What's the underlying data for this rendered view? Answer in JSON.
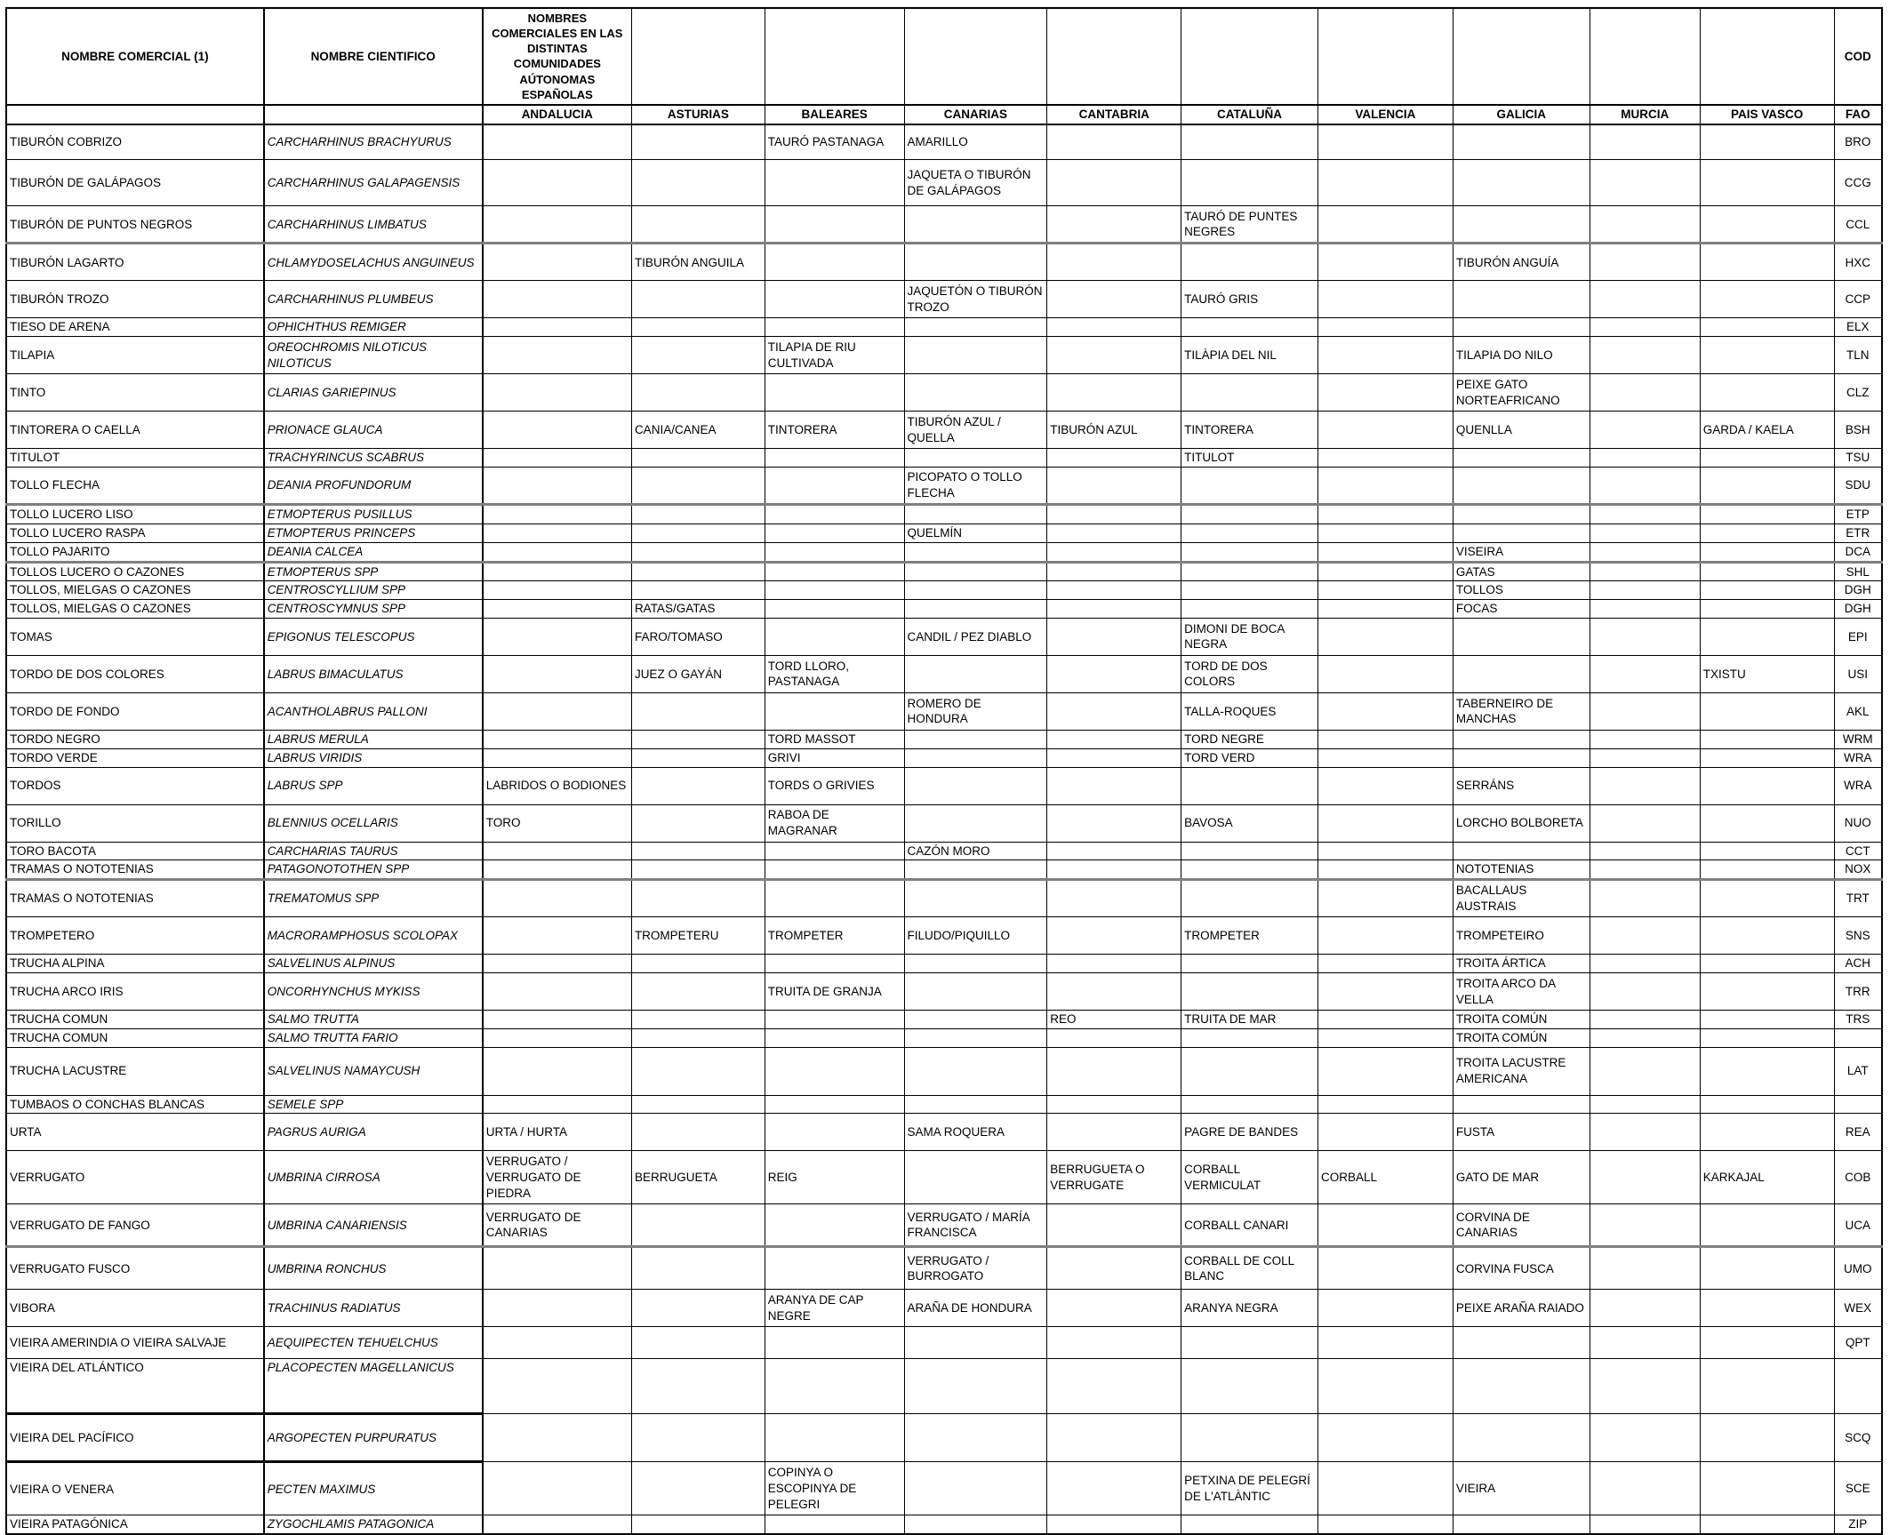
{
  "header": {
    "col_commercial": "NOMBRE COMERCIAL (1)",
    "col_scientific": "NOMBRE CIENTIFICO",
    "col_group": "NOMBRES COMERCIALES EN LAS DISTINTAS COMUNIDADES AÚTONOMAS ESPAÑOLAS",
    "col_cod": "COD",
    "regions": [
      "ANDALUCIA",
      "ASTURIAS",
      "BALEARES",
      "CANARIAS",
      "CANTABRIA",
      "CATALUÑA",
      "VALENCIA",
      "GALICIA",
      "MURCIA",
      "PAIS VASCO"
    ],
    "col_fao": "FAO"
  },
  "rows": [
    {
      "commercial": "TIBURÓN COBRIZO",
      "scientific": "CARCHARHINUS BRACHYURUS",
      "regions": [
        "",
        "",
        "TAURÓ PASTANAGA",
        "AMARILLO",
        "",
        "",
        "",
        "",
        "",
        ""
      ],
      "fao": "BRO"
    },
    {
      "commercial": "TIBURÓN DE GALÁPAGOS",
      "scientific": "CARCHARHINUS GALAPAGENSIS",
      "regions": [
        "",
        "",
        "",
        "JAQUETA O TIBURÓN DE GALÁPAGOS",
        "",
        "",
        "",
        "",
        "",
        ""
      ],
      "fao": "CCG"
    },
    {
      "commercial": "TIBURÓN DE PUNTOS NEGROS",
      "scientific": "CARCHARHINUS LIMBATUS",
      "regions": [
        "",
        "",
        "",
        "",
        "",
        "TAURÓ DE PUNTES NEGRES",
        "",
        "",
        "",
        ""
      ],
      "fao": "CCL"
    },
    {
      "commercial": "TIBURÓN LAGARTO",
      "scientific": "CHLAMYDOSELACHUS ANGUINEUS",
      "regions": [
        "",
        "TIBURÓN ANGUILA",
        "",
        "",
        "",
        "",
        "",
        "TIBURÓN ANGUÍA",
        "",
        ""
      ],
      "fao": "HXC"
    },
    {
      "commercial": "TIBURÓN TROZO",
      "scientific": "CARCHARHINUS PLUMBEUS",
      "regions": [
        "",
        "",
        "",
        "JAQUETÓN O TIBURÓN TROZO",
        "",
        "TAURÓ GRIS",
        "",
        "",
        "",
        ""
      ],
      "fao": "CCP"
    },
    {
      "commercial": "TIESO DE ARENA",
      "scientific": "OPHICHTHUS REMIGER",
      "regions": [
        "",
        "",
        "",
        "",
        "",
        "",
        "",
        "",
        "",
        ""
      ],
      "fao": "ELX"
    },
    {
      "commercial": "TILAPIA",
      "scientific": "OREOCHROMIS NILOTICUS NILOTICUS",
      "regions": [
        "",
        "",
        "TILAPIA DE RIU CULTIVADA",
        "",
        "",
        "TILÀPIA DEL NIL",
        "",
        "TILAPIA DO NILO",
        "",
        ""
      ],
      "fao": "TLN"
    },
    {
      "commercial": "TINTO",
      "scientific": "CLARIAS GARIEPINUS",
      "regions": [
        "",
        "",
        "",
        "",
        "",
        "",
        "",
        "PEIXE GATO NORTEAFRICANO",
        "",
        ""
      ],
      "fao": "CLZ"
    },
    {
      "commercial": "TINTORERA O CAELLA",
      "scientific": "PRIONACE GLAUCA",
      "regions": [
        "",
        "CANIA/CANEA",
        "TINTORERA",
        "TIBURÓN AZUL / QUELLA",
        "TIBURÓN AZUL",
        "TINTORERA",
        "",
        "QUENLLA",
        "",
        "GARDA / KAELA"
      ],
      "fao": "BSH"
    },
    {
      "commercial": "TITULOT",
      "scientific": "TRACHYRINCUS SCABRUS",
      "regions": [
        "",
        "",
        "",
        "",
        "",
        "TITULOT",
        "",
        "",
        "",
        ""
      ],
      "fao": "TSU"
    },
    {
      "commercial": "TOLLO FLECHA",
      "scientific": "DEANIA PROFUNDORUM",
      "regions": [
        "",
        "",
        "",
        "PICOPATO O TOLLO FLECHA",
        "",
        "",
        "",
        "",
        "",
        ""
      ],
      "fao": "SDU"
    },
    {
      "commercial": "TOLLO LUCERO LISO",
      "scientific": "ETMOPTERUS PUSILLUS",
      "regions": [
        "",
        "",
        "",
        "",
        "",
        "",
        "",
        "",
        "",
        ""
      ],
      "fao": "ETP"
    },
    {
      "commercial": "TOLLO LUCERO RASPA",
      "scientific": "ETMOPTERUS PRINCEPS",
      "regions": [
        "",
        "",
        "",
        "QUELMÍN",
        "",
        "",
        "",
        "",
        "",
        ""
      ],
      "fao": "ETR"
    },
    {
      "commercial": "TOLLO PAJARITO",
      "scientific": "DEANIA CALCEA",
      "regions": [
        "",
        "",
        "",
        "",
        "",
        "",
        "",
        "VISEIRA",
        "",
        ""
      ],
      "fao": "DCA"
    },
    {
      "commercial": "TOLLOS LUCERO O CAZONES",
      "scientific": "ETMOPTERUS SPP",
      "regions": [
        "",
        "",
        "",
        "",
        "",
        "",
        "",
        "GATAS",
        "",
        ""
      ],
      "fao": "SHL"
    },
    {
      "commercial": "TOLLOS, MIELGAS O CAZONES",
      "scientific": "CENTROSCYLLIUM SPP",
      "regions": [
        "",
        "",
        "",
        "",
        "",
        "",
        "",
        "TOLLOS",
        "",
        ""
      ],
      "fao": "DGH"
    },
    {
      "commercial": "TOLLOS, MIELGAS O CAZONES",
      "scientific": "CENTROSCYMNUS SPP",
      "regions": [
        "",
        "RATAS/GATAS",
        "",
        "",
        "",
        "",
        "",
        "FOCAS",
        "",
        ""
      ],
      "fao": "DGH"
    },
    {
      "commercial": "TOMAS",
      "scientific": "EPIGONUS TELESCOPUS",
      "regions": [
        "",
        "FARO/TOMASO",
        "",
        "CANDIL / PEZ DIABLO",
        "",
        "DIMONI DE BOCA NEGRA",
        "",
        "",
        "",
        ""
      ],
      "fao": "EPI"
    },
    {
      "commercial": "TORDO DE DOS COLORES",
      "scientific": "LABRUS BIMACULATUS",
      "regions": [
        "",
        "JUEZ O GAYÁN",
        "TORD LLORO, PASTANAGA",
        "",
        "",
        "TORD DE DOS COLORS",
        "",
        "",
        "",
        "TXISTU"
      ],
      "fao": "USI"
    },
    {
      "commercial": "TORDO DE FONDO",
      "scientific": "ACANTHOLABRUS PALLONI",
      "regions": [
        "",
        "",
        "",
        "ROMERO DE HONDURA",
        "",
        "TALLA-ROQUES",
        "",
        "TABERNEIRO DE MANCHAS",
        "",
        ""
      ],
      "fao": "AKL"
    },
    {
      "commercial": "TORDO NEGRO",
      "scientific": "LABRUS MERULA",
      "regions": [
        "",
        "",
        "TORD MASSOT",
        "",
        "",
        "TORD NEGRE",
        "",
        "",
        "",
        ""
      ],
      "fao": "WRM"
    },
    {
      "commercial": "TORDO VERDE",
      "scientific": "LABRUS VIRIDIS",
      "regions": [
        "",
        "",
        "GRIVI",
        "",
        "",
        "TORD VERD",
        "",
        "",
        "",
        ""
      ],
      "fao": "WRA"
    },
    {
      "commercial": "TORDOS",
      "scientific": "LABRUS SPP",
      "regions": [
        "LABRIDOS O BODIONES",
        "",
        "TORDS O GRIVIES",
        "",
        "",
        "",
        "",
        "SERRÁNS",
        "",
        ""
      ],
      "fao": "WRA"
    },
    {
      "commercial": "TORILLO",
      "scientific": "BLENNIUS OCELLARIS",
      "regions": [
        "TORO",
        "",
        "RABOA DE MAGRANAR",
        "",
        "",
        "BAVOSA",
        "",
        "LORCHO BOLBORETA",
        "",
        ""
      ],
      "fao": "NUO"
    },
    {
      "commercial": "TORO BACOTA",
      "scientific": "CARCHARIAS TAURUS",
      "regions": [
        "",
        "",
        "",
        "CAZÓN MORO",
        "",
        "",
        "",
        "",
        "",
        ""
      ],
      "fao": "CCT"
    },
    {
      "commercial": "TRAMAS O NOTOTENIAS",
      "scientific": "PATAGONOTOTHEN SPP",
      "regions": [
        "",
        "",
        "",
        "",
        "",
        "",
        "",
        "NOTOTENIAS",
        "",
        ""
      ],
      "fao": "NOX"
    },
    {
      "commercial": "TRAMAS O NOTOTENIAS",
      "scientific": "TREMATOMUS SPP",
      "regions": [
        "",
        "",
        "",
        "",
        "",
        "",
        "",
        "BACALLAUS AUSTRAIS",
        "",
        ""
      ],
      "fao": "TRT"
    },
    {
      "commercial": "TROMPETERO",
      "scientific": "MACRORAMPHOSUS SCOLOPAX",
      "regions": [
        "",
        "TROMPETERU",
        "TROMPETER",
        "FILUDO/PIQUILLO",
        "",
        "TROMPETER",
        "",
        "TROMPETEIRO",
        "",
        ""
      ],
      "fao": "SNS"
    },
    {
      "commercial": "TRUCHA ALPINA",
      "scientific": "SALVELINUS ALPINUS",
      "regions": [
        "",
        "",
        "",
        "",
        "",
        "",
        "",
        "TROITA ÁRTICA",
        "",
        ""
      ],
      "fao": "ACH"
    },
    {
      "commercial": "TRUCHA ARCO IRIS",
      "scientific": "ONCORHYNCHUS MYKISS",
      "regions": [
        "",
        "",
        "TRUITA DE GRANJA",
        "",
        "",
        "",
        "",
        "TROITA ARCO DA VELLA",
        "",
        ""
      ],
      "fao": "TRR"
    },
    {
      "commercial": "TRUCHA COMUN",
      "scientific": "SALMO TRUTTA",
      "regions": [
        "",
        "",
        "",
        "",
        "REO",
        "TRUITA DE MAR",
        "",
        "TROITA COMÚN",
        "",
        ""
      ],
      "fao": "TRS"
    },
    {
      "commercial": "TRUCHA COMUN",
      "scientific": "SALMO TRUTTA FARIO",
      "regions": [
        "",
        "",
        "",
        "",
        "",
        "",
        "",
        "TROITA COMÚN",
        "",
        ""
      ],
      "fao": ""
    },
    {
      "commercial": "TRUCHA LACUSTRE",
      "scientific": "SALVELINUS NAMAYCUSH",
      "regions": [
        "",
        "",
        "",
        "",
        "",
        "",
        "",
        "TROITA LACUSTRE AMERICANA",
        "",
        ""
      ],
      "fao": "LAT"
    },
    {
      "commercial": "TUMBAOS O CONCHAS BLANCAS",
      "scientific": "SEMELE SPP",
      "regions": [
        "",
        "",
        "",
        "",
        "",
        "",
        "",
        "",
        "",
        ""
      ],
      "fao": ""
    },
    {
      "commercial": "URTA",
      "scientific": "PAGRUS AURIGA",
      "regions": [
        "URTA / HURTA",
        "",
        "",
        "SAMA ROQUERA",
        "",
        "PAGRE DE BANDES",
        "",
        "FUSTA",
        "",
        ""
      ],
      "fao": "REA"
    },
    {
      "commercial": "VERRUGATO",
      "scientific": "UMBRINA CIRROSA",
      "regions": [
        "VERRUGATO / VERRUGATO DE PIEDRA",
        "BERRUGUETA",
        "REIG",
        "",
        "BERRUGUETA O VERRUGATE",
        "CORBALL VERMICULAT",
        "CORBALL",
        "GATO DE MAR",
        "",
        "KARKAJAL"
      ],
      "fao": "COB"
    },
    {
      "commercial": "VERRUGATO DE FANGO",
      "scientific": "UMBRINA CANARIENSIS",
      "regions": [
        "VERRUGATO DE CANARIAS",
        "",
        "",
        "VERRUGATO / MARÍA FRANCISCA",
        "",
        "CORBALL CANARI",
        "",
        "CORVINA DE CANARIAS",
        "",
        ""
      ],
      "fao": "UCA"
    },
    {
      "commercial": "VERRUGATO FUSCO",
      "scientific": "UMBRINA RONCHUS",
      "regions": [
        "",
        "",
        "",
        "VERRUGATO / BURROGATO",
        "",
        "CORBALL DE COLL BLANC",
        "",
        "CORVINA FUSCA",
        "",
        ""
      ],
      "fao": "UMO"
    },
    {
      "commercial": "VIBORA",
      "scientific": "TRACHINUS RADIATUS",
      "regions": [
        "",
        "",
        "ARANYA DE CAP NEGRE",
        "ARAÑA DE HONDURA",
        "",
        "ARANYA NEGRA",
        "",
        "PEIXE ARAÑA RAIADO",
        "",
        ""
      ],
      "fao": "WEX"
    },
    {
      "commercial": "VIEIRA AMERINDIA O VIEIRA SALVAJE",
      "scientific": "AEQUIPECTEN TEHUELCHUS",
      "regions": [
        "",
        "",
        "",
        "",
        "",
        "",
        "",
        "",
        "",
        ""
      ],
      "fao": "QPT"
    },
    {
      "commercial": "VIEIRA DEL ATLÁNTICO",
      "scientific": "PLACOPECTEN MAGELLANICUS",
      "regions": [
        "",
        "",
        "",
        "",
        "",
        "",
        "",
        "",
        "",
        ""
      ],
      "fao": ""
    },
    {
      "commercial": "VIEIRA DEL PACÍFICO",
      "scientific": "ARGOPECTEN PURPURATUS",
      "regions": [
        "",
        "",
        "",
        "",
        "",
        "",
        "",
        "",
        "",
        ""
      ],
      "fao": "SCQ"
    },
    {
      "commercial": "VIEIRA O VENERA",
      "scientific": "PECTEN MAXIMUS",
      "regions": [
        "",
        "",
        "COPINYA O ESCOPINYA DE PELEGRI",
        "",
        "",
        "PETXINA DE PELEGRÍ DE L'ATLÀNTIC",
        "",
        "VIEIRA",
        "",
        ""
      ],
      "fao": "SCE"
    },
    {
      "commercial": "VIEIRA PATAGÓNICA",
      "scientific": "ZYGOCHLAMIS PATAGONICA",
      "regions": [
        "",
        "",
        "",
        "",
        "",
        "",
        "",
        "",
        "",
        ""
      ],
      "fao": "ZIP"
    }
  ]
}
